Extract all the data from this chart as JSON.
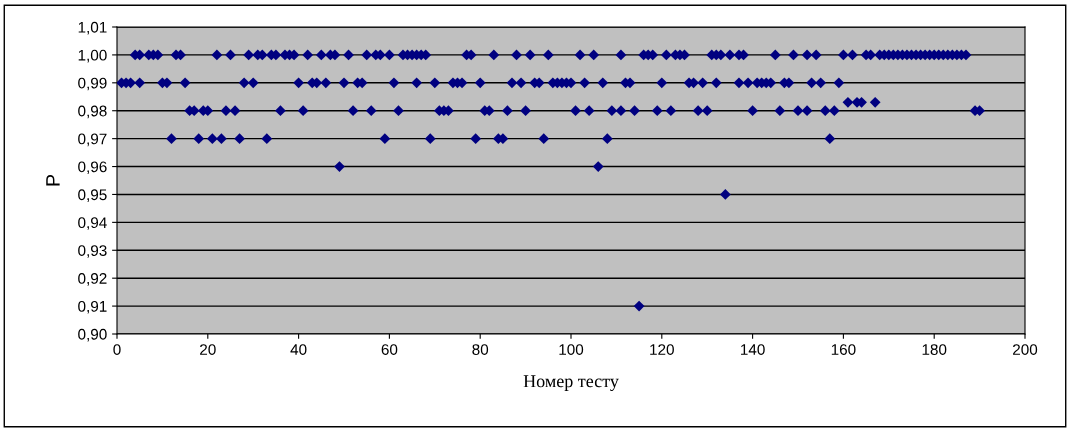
{
  "chart_data": {
    "type": "scatter",
    "xlabel": "Номер тесту",
    "ylabel": "P",
    "series": [
      {
        "color": "#000080",
        "x": [
          4,
          5,
          7,
          8,
          9,
          13,
          14,
          22,
          25,
          29,
          31,
          32,
          34,
          35,
          37,
          38,
          39,
          42,
          45,
          47,
          48,
          51,
          55,
          57,
          58,
          60,
          63,
          64,
          65,
          66,
          67,
          68,
          77,
          78,
          83,
          88,
          91,
          95,
          102,
          105,
          111,
          116,
          117,
          118,
          121,
          123,
          124,
          125,
          131,
          132,
          133,
          135,
          137,
          138,
          145,
          149,
          152,
          154,
          160,
          162,
          165,
          166,
          168,
          169,
          170,
          171,
          172,
          173,
          174,
          175,
          176,
          177,
          178,
          179,
          180,
          181,
          182,
          183,
          184,
          185,
          186,
          187
        ],
        "values": [
          1.0,
          1.0,
          1.0,
          1.0,
          1.0,
          1.0,
          1.0,
          1.0,
          1.0,
          1.0,
          1.0,
          1.0,
          1.0,
          1.0,
          1.0,
          1.0,
          1.0,
          1.0,
          1.0,
          1.0,
          1.0,
          1.0,
          1.0,
          1.0,
          1.0,
          1.0,
          1.0,
          1.0,
          1.0,
          1.0,
          1.0,
          1.0,
          1.0,
          1.0,
          1.0,
          1.0,
          1.0,
          1.0,
          1.0,
          1.0,
          1.0,
          1.0,
          1.0,
          1.0,
          1.0,
          1.0,
          1.0,
          1.0,
          1.0,
          1.0,
          1.0,
          1.0,
          1.0,
          1.0,
          1.0,
          1.0,
          1.0,
          1.0,
          1.0,
          1.0,
          1.0,
          1.0,
          1.0,
          1.0,
          1.0,
          1.0,
          1.0,
          1.0,
          1.0,
          1.0,
          1.0,
          1.0,
          1.0,
          1.0,
          1.0,
          1.0,
          1.0,
          1.0,
          1.0,
          1.0,
          1.0,
          1.0
        ]
      },
      {
        "color": "#000080",
        "x": [
          1,
          2,
          3,
          5,
          10,
          11,
          15,
          28,
          30,
          40,
          43,
          44,
          46,
          50,
          53,
          54,
          61,
          66,
          70,
          74,
          75,
          76,
          80,
          87,
          89,
          92,
          93,
          96,
          97,
          98,
          99,
          100,
          103,
          107,
          112,
          113,
          120,
          126,
          127,
          129,
          132,
          137,
          139,
          141,
          142,
          143,
          144,
          147,
          148,
          153,
          155,
          159
        ],
        "values": [
          0.99,
          0.99,
          0.99,
          0.99,
          0.99,
          0.99,
          0.99,
          0.99,
          0.99,
          0.99,
          0.99,
          0.99,
          0.99,
          0.99,
          0.99,
          0.99,
          0.99,
          0.99,
          0.99,
          0.99,
          0.99,
          0.99,
          0.99,
          0.99,
          0.99,
          0.99,
          0.99,
          0.99,
          0.99,
          0.99,
          0.99,
          0.99,
          0.99,
          0.99,
          0.99,
          0.99,
          0.99,
          0.99,
          0.99,
          0.99,
          0.99,
          0.99,
          0.99,
          0.99,
          0.99,
          0.99,
          0.99,
          0.99,
          0.99,
          0.99,
          0.99,
          0.99
        ]
      },
      {
        "color": "#000080",
        "x": [
          161,
          163,
          164,
          167
        ],
        "values": [
          0.983,
          0.983,
          0.983,
          0.983
        ]
      },
      {
        "color": "#000080",
        "x": [
          16,
          17,
          19,
          20,
          24,
          26,
          36,
          41,
          52,
          56,
          62,
          71,
          72,
          73,
          81,
          82,
          86,
          90,
          101,
          104,
          109,
          111,
          114,
          119,
          122,
          128,
          130,
          140,
          146,
          150,
          152,
          156,
          158,
          189,
          190
        ],
        "values": [
          0.98,
          0.98,
          0.98,
          0.98,
          0.98,
          0.98,
          0.98,
          0.98,
          0.98,
          0.98,
          0.98,
          0.98,
          0.98,
          0.98,
          0.98,
          0.98,
          0.98,
          0.98,
          0.98,
          0.98,
          0.98,
          0.98,
          0.98,
          0.98,
          0.98,
          0.98,
          0.98,
          0.98,
          0.98,
          0.98,
          0.98,
          0.98,
          0.98,
          0.98,
          0.98
        ]
      },
      {
        "color": "#000080",
        "x": [
          12,
          18,
          21,
          23,
          27,
          33,
          59,
          69,
          79,
          84,
          85,
          94,
          108,
          157
        ],
        "values": [
          0.97,
          0.97,
          0.97,
          0.97,
          0.97,
          0.97,
          0.97,
          0.97,
          0.97,
          0.97,
          0.97,
          0.97,
          0.97,
          0.97
        ]
      },
      {
        "color": "#000080",
        "x": [
          49,
          106,
          134,
          115
        ],
        "values": [
          0.96,
          0.96,
          0.95,
          0.91
        ]
      }
    ],
    "marker": "diamond",
    "grid": "y",
    "xlim": [
      0,
      200
    ],
    "xticks": [
      0,
      20,
      40,
      60,
      80,
      100,
      120,
      140,
      160,
      180,
      200
    ],
    "ylim": [
      0.9,
      1.01
    ],
    "yticks": [
      {
        "value": 0.9,
        "label": "0,90"
      },
      {
        "value": 0.91,
        "label": "0,91"
      },
      {
        "value": 0.92,
        "label": "0,92"
      },
      {
        "value": 0.93,
        "label": "0,93"
      },
      {
        "value": 0.94,
        "label": "0,94"
      },
      {
        "value": 0.95,
        "label": "0,95"
      },
      {
        "value": 0.96,
        "label": "0,96"
      },
      {
        "value": 0.97,
        "label": "0,97"
      },
      {
        "value": 0.98,
        "label": "0,98"
      },
      {
        "value": 0.99,
        "label": "0,99"
      },
      {
        "value": 1.0,
        "label": "1,00"
      },
      {
        "value": 1.01,
        "label": "1,01"
      }
    ]
  }
}
